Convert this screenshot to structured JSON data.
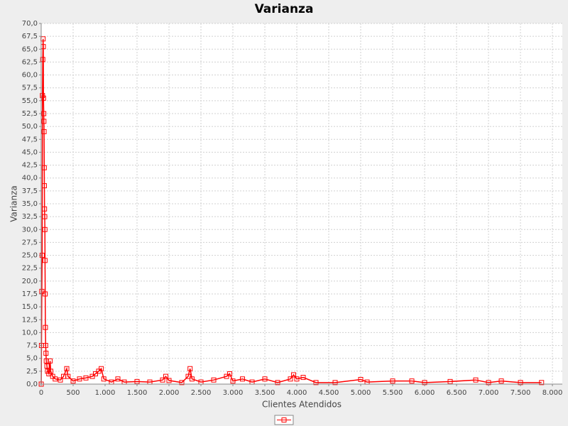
{
  "chart_data": {
    "type": "line",
    "title": "Varianza",
    "x_label": "Clientes Atendidos",
    "y_label": "Varianza",
    "x": [
      1,
      5,
      10,
      15,
      20,
      25,
      30,
      33,
      36,
      40,
      42,
      45,
      48,
      50,
      52,
      55,
      58,
      60,
      63,
      66,
      70,
      75,
      80,
      90,
      100,
      120,
      140,
      150,
      180,
      220,
      300,
      350,
      400,
      420,
      500,
      600,
      700,
      800,
      850,
      900,
      940,
      980,
      1100,
      1200,
      1300,
      1500,
      1700,
      1900,
      1950,
      2000,
      2200,
      2300,
      2330,
      2360,
      2500,
      2700,
      2900,
      2950,
      3000,
      3150,
      3300,
      3500,
      3700,
      3900,
      3950,
      4000,
      4100,
      4300,
      4600,
      5000,
      5100,
      5500,
      5800,
      6000,
      6400,
      6800,
      7000,
      7200,
      7500,
      7830
    ],
    "series": [
      {
        "color": "#ff0000",
        "values": [
          0,
          7.5,
          18,
          25,
          56,
          63,
          67,
          65.5,
          55.5,
          52.5,
          51,
          49,
          42,
          38.5,
          34,
          32.5,
          30,
          24,
          17.5,
          11,
          7.5,
          6,
          4.5,
          3.5,
          2.5,
          2,
          4.5,
          2.5,
          1.5,
          1,
          0.8,
          1.5,
          3,
          1.5,
          0.6,
          1,
          1.2,
          1.5,
          2,
          2.5,
          3,
          1,
          0.4,
          1,
          0.4,
          0.5,
          0.4,
          0.8,
          1.5,
          0.7,
          0.3,
          1.5,
          3,
          1,
          0.4,
          0.8,
          1.5,
          2,
          0.6,
          1,
          0.4,
          1,
          0.3,
          1,
          1.8,
          1,
          1.3,
          0.3,
          0.3,
          0.9,
          0.4,
          0.6,
          0.6,
          0.3,
          0.5,
          0.8,
          0.3,
          0.6,
          0.3,
          0.3
        ]
      }
    ],
    "xlim": [
      0,
      8155
    ],
    "ylim": [
      0,
      70
    ],
    "grid": true,
    "xticks": [
      0,
      500,
      {
        "value": 1000,
        "label": "1.000"
      },
      {
        "value": 1500,
        "label": "1.500"
      },
      {
        "value": 2000,
        "label": "2.000"
      },
      {
        "value": 2500,
        "label": "2.500"
      },
      {
        "value": 3000,
        "label": "3.000"
      },
      {
        "value": 3500,
        "label": "3.500"
      },
      {
        "value": 4000,
        "label": "4.000"
      },
      {
        "value": 4500,
        "label": "4.500"
      },
      {
        "value": 5000,
        "label": "5.000"
      },
      {
        "value": 5500,
        "label": "5.500"
      },
      {
        "value": 6000,
        "label": "6.000"
      },
      {
        "value": 6500,
        "label": "6.500"
      },
      {
        "value": 7000,
        "label": "7.000"
      },
      {
        "value": 7500,
        "label": "7.500"
      },
      {
        "value": 8000,
        "label": "8.000"
      }
    ],
    "yticks": [
      {
        "value": 0,
        "label": "0,0"
      },
      {
        "value": 2.5,
        "label": "2,5"
      },
      {
        "value": 5,
        "label": "5,0"
      },
      {
        "value": 7.5,
        "label": "7,5"
      },
      {
        "value": 10,
        "label": "10,0"
      },
      {
        "value": 12.5,
        "label": "12,5"
      },
      {
        "value": 15,
        "label": "15,0"
      },
      {
        "value": 17.5,
        "label": "17,5"
      },
      {
        "value": 20,
        "label": "20,0"
      },
      {
        "value": 22.5,
        "label": "22,5"
      },
      {
        "value": 25,
        "label": "25,0"
      },
      {
        "value": 27.5,
        "label": "27,5"
      },
      {
        "value": 30,
        "label": "30,0"
      },
      {
        "value": 32.5,
        "label": "32,5"
      },
      {
        "value": 35,
        "label": "35,0"
      },
      {
        "value": 37.5,
        "label": "37,5"
      },
      {
        "value": 40,
        "label": "40,0"
      },
      {
        "value": 42.5,
        "label": "42,5"
      },
      {
        "value": 45,
        "label": "45,0"
      },
      {
        "value": 47.5,
        "label": "47,5"
      },
      {
        "value": 50,
        "label": "50,0"
      },
      {
        "value": 52.5,
        "label": "52,5"
      },
      {
        "value": 55,
        "label": "55,0"
      },
      {
        "value": 57.5,
        "label": "57,5"
      },
      {
        "value": 60,
        "label": "60,0"
      },
      {
        "value": 62.5,
        "label": "62,5"
      },
      {
        "value": 65,
        "label": "65,0"
      },
      {
        "value": 67.5,
        "label": "67,5"
      },
      {
        "value": 70,
        "label": "70,0"
      }
    ]
  }
}
